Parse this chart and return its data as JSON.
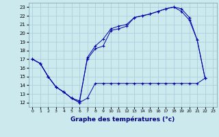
{
  "title": "Graphe des températures (°c)",
  "bg_color": "#cce9ee",
  "grid_color": "#aad0dd",
  "line_color": "#0000aa",
  "xlim": [
    -0.5,
    23.5
  ],
  "ylim": [
    11.5,
    23.5
  ],
  "xticks": [
    0,
    1,
    2,
    3,
    4,
    5,
    6,
    7,
    8,
    9,
    10,
    11,
    12,
    13,
    14,
    15,
    16,
    17,
    18,
    19,
    20,
    21,
    22,
    23
  ],
  "yticks": [
    12,
    13,
    14,
    15,
    16,
    17,
    18,
    19,
    20,
    21,
    22,
    23
  ],
  "line1_x": [
    0,
    1,
    2,
    3,
    4,
    5,
    6,
    7,
    8,
    9,
    10,
    11,
    12,
    13,
    14,
    15,
    16,
    17,
    18,
    19,
    20,
    21,
    22
  ],
  "line1_y": [
    17.0,
    16.5,
    15.0,
    13.8,
    13.2,
    12.5,
    12.0,
    12.5,
    14.2,
    14.2,
    14.2,
    14.2,
    14.2,
    14.2,
    14.2,
    14.2,
    14.2,
    14.2,
    14.2,
    14.2,
    14.2,
    14.2,
    14.8
  ],
  "line2_x": [
    0,
    1,
    2,
    3,
    4,
    5,
    6,
    7,
    8,
    9,
    10,
    11,
    12,
    13,
    14,
    15,
    16,
    17,
    18,
    19,
    20,
    21,
    22
  ],
  "line2_y": [
    17.0,
    16.5,
    15.0,
    13.8,
    13.2,
    12.5,
    12.0,
    17.2,
    18.5,
    19.3,
    20.5,
    20.8,
    21.0,
    21.8,
    22.0,
    22.2,
    22.5,
    22.8,
    23.0,
    22.8,
    21.8,
    19.2,
    14.8
  ],
  "line3_x": [
    0,
    1,
    2,
    3,
    4,
    5,
    6,
    7,
    8,
    9,
    10,
    11,
    12,
    13,
    14,
    15,
    16,
    17,
    18,
    19,
    20,
    21,
    22
  ],
  "line3_y": [
    17.0,
    16.5,
    15.0,
    13.8,
    13.2,
    12.5,
    12.2,
    17.0,
    18.2,
    18.5,
    20.3,
    20.5,
    20.8,
    21.8,
    22.0,
    22.2,
    22.5,
    22.8,
    23.0,
    22.5,
    21.5,
    19.2,
    14.8
  ]
}
